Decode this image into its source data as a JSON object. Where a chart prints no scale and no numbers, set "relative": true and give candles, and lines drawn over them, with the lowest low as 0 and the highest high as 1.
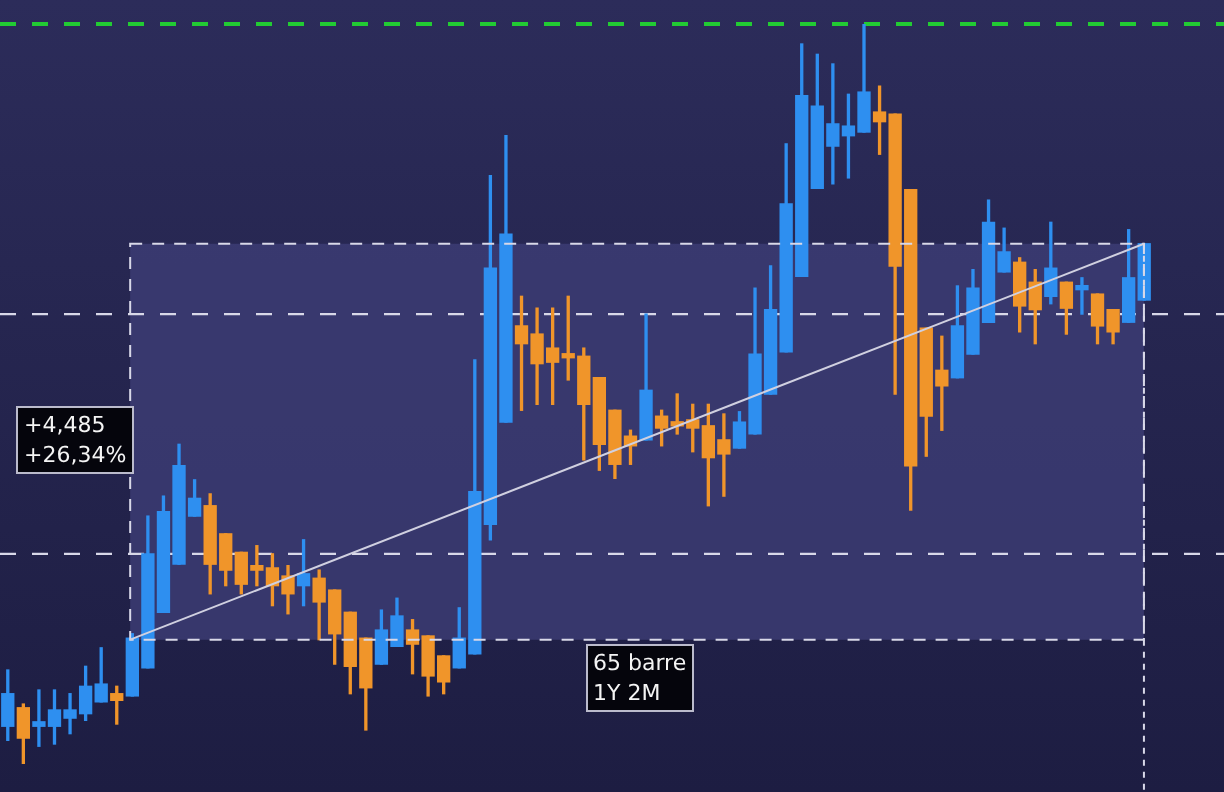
{
  "chart_data": {
    "type": "candlestick",
    "relative": true,
    "categories": [
      null,
      null,
      null,
      null,
      null,
      null,
      null,
      null,
      null,
      null,
      null,
      null,
      null,
      null,
      null,
      null,
      null,
      null,
      null,
      null,
      null,
      null,
      null,
      null,
      null,
      null,
      null,
      null,
      null,
      null,
      null,
      null,
      null,
      null,
      null,
      null,
      null,
      null,
      null,
      null,
      null,
      null,
      null,
      null,
      null,
      null,
      null,
      null,
      null,
      null,
      null,
      null,
      null,
      null,
      null,
      null,
      null,
      null,
      null,
      null,
      null,
      null,
      null,
      null,
      null,
      null,
      null,
      null,
      null,
      null,
      null,
      null,
      null,
      null
    ],
    "ohlc": [
      [
        0.051,
        0.127,
        0.032,
        0.095
      ],
      [
        0.076,
        0.081,
        0,
        0.035
      ],
      [
        0.051,
        0.1,
        0.024,
        0.057
      ],
      [
        0.051,
        0.1,
        0.027,
        0.073
      ],
      [
        0.062,
        0.095,
        0.041,
        0.073
      ],
      [
        0.068,
        0.132,
        0.059,
        0.105
      ],
      [
        0.084,
        0.157,
        0.084,
        0.108
      ],
      [
        0.095,
        0.105,
        0.054,
        0.086
      ],
      [
        0.092,
        0.176,
        0.092,
        0.17
      ],
      [
        0.13,
        0.335,
        0.13,
        0.284
      ],
      [
        0.205,
        0.362,
        0.205,
        0.341
      ],
      [
        0.27,
        0.432,
        0.27,
        0.403
      ],
      [
        0.335,
        0.384,
        0.335,
        0.359
      ],
      [
        0.349,
        0.365,
        0.23,
        0.27
      ],
      [
        0.311,
        0.311,
        0.241,
        0.262
      ],
      [
        0.286,
        0.286,
        0.23,
        0.243
      ],
      [
        0.268,
        0.295,
        0.241,
        0.262
      ],
      [
        0.265,
        0.284,
        0.214,
        0.241
      ],
      [
        0.254,
        0.268,
        0.203,
        0.23
      ],
      [
        0.241,
        0.303,
        0.214,
        0.257
      ],
      [
        0.251,
        0.262,
        0.168,
        0.219
      ],
      [
        0.235,
        0.235,
        0.135,
        0.176
      ],
      [
        0.205,
        0.205,
        0.095,
        0.132
      ],
      [
        0.17,
        0.17,
        0.046,
        0.103
      ],
      [
        0.135,
        0.208,
        0.135,
        0.181
      ],
      [
        0.159,
        0.224,
        0.159,
        0.2
      ],
      [
        0.181,
        0.195,
        0.122,
        0.162
      ],
      [
        0.173,
        0.173,
        0.092,
        0.119
      ],
      [
        0.146,
        0.146,
        0.095,
        0.111
      ],
      [
        0.13,
        0.211,
        0.13,
        0.17
      ],
      [
        0.149,
        0.546,
        0.149,
        0.368
      ],
      [
        0.324,
        0.795,
        0.303,
        0.67
      ],
      [
        0.462,
        0.849,
        0.462,
        0.716
      ],
      [
        0.592,
        0.632,
        0.478,
        0.568
      ],
      [
        0.581,
        0.616,
        0.486,
        0.541
      ],
      [
        0.562,
        0.616,
        0.486,
        0.543
      ],
      [
        0.554,
        0.632,
        0.519,
        0.549
      ],
      [
        0.551,
        0.562,
        0.411,
        0.486
      ],
      [
        0.522,
        0.522,
        0.397,
        0.432
      ],
      [
        0.478,
        0.478,
        0.386,
        0.405
      ],
      [
        0.443,
        0.451,
        0.405,
        0.43
      ],
      [
        0.438,
        0.608,
        0.438,
        0.505
      ],
      [
        0.47,
        0.478,
        0.43,
        0.454
      ],
      [
        0.462,
        0.5,
        0.446,
        0.457
      ],
      [
        0.465,
        0.486,
        0.422,
        0.454
      ],
      [
        0.457,
        0.486,
        0.349,
        0.414
      ],
      [
        0.438,
        0.473,
        0.362,
        0.419
      ],
      [
        0.427,
        0.476,
        0.427,
        0.462
      ],
      [
        0.446,
        0.643,
        0.446,
        0.554
      ],
      [
        0.5,
        0.673,
        0.5,
        0.614
      ],
      [
        0.557,
        0.838,
        0.557,
        0.757
      ],
      [
        0.659,
        0.973,
        0.659,
        0.903
      ],
      [
        0.778,
        0.959,
        0.778,
        0.889
      ],
      [
        0.835,
        0.946,
        0.784,
        0.865
      ],
      [
        0.849,
        0.905,
        0.792,
        0.862
      ],
      [
        0.854,
        1,
        0.854,
        0.908
      ],
      [
        0.881,
        0.916,
        0.824,
        0.868
      ],
      [
        0.878,
        0.878,
        0.5,
        0.673
      ],
      [
        0.776,
        0.776,
        0.343,
        0.403
      ],
      [
        0.589,
        0.589,
        0.416,
        0.47
      ],
      [
        0.532,
        0.578,
        0.451,
        0.511
      ],
      [
        0.522,
        0.646,
        0.522,
        0.592
      ],
      [
        0.554,
        0.668,
        0.554,
        0.643
      ],
      [
        0.597,
        0.762,
        0.597,
        0.732
      ],
      [
        0.665,
        0.724,
        0.665,
        0.692
      ],
      [
        0.678,
        0.684,
        0.584,
        0.619
      ],
      [
        0.651,
        0.668,
        0.568,
        0.614
      ],
      [
        0.632,
        0.732,
        0.622,
        0.67
      ],
      [
        0.651,
        0.651,
        0.581,
        0.616
      ],
      [
        0.641,
        0.657,
        0.608,
        0.646
      ],
      [
        0.635,
        0.635,
        0.568,
        0.592
      ],
      [
        0.614,
        0.614,
        0.568,
        0.584
      ],
      [
        0.597,
        0.722,
        0.597,
        0.657
      ],
      [
        0.627,
        0.703,
        0.627,
        0.703
      ]
    ],
    "colors": [
      "#2e8ff0",
      "#f0952a",
      "#2e8ff0",
      "#2e8ff0",
      "#2e8ff0",
      "#2e8ff0",
      "#2e8ff0",
      "#f0952a",
      "#2e8ff0",
      "#2e8ff0",
      "#2e8ff0",
      "#2e8ff0",
      "#2e8ff0",
      "#f0952a",
      "#f0952a",
      "#f0952a",
      "#f0952a",
      "#f0952a",
      "#f0952a",
      "#2e8ff0",
      "#f0952a",
      "#f0952a",
      "#f0952a",
      "#f0952a",
      "#2e8ff0",
      "#2e8ff0",
      "#f0952a",
      "#f0952a",
      "#f0952a",
      "#2e8ff0",
      "#2e8ff0",
      "#2e8ff0",
      "#2e8ff0",
      "#f0952a",
      "#f0952a",
      "#f0952a",
      "#f0952a",
      "#f0952a",
      "#f0952a",
      "#f0952a",
      "#f0952a",
      "#2e8ff0",
      "#f0952a",
      "#f0952a",
      "#f0952a",
      "#f0952a",
      "#f0952a",
      "#2e8ff0",
      "#2e8ff0",
      "#2e8ff0",
      "#2e8ff0",
      "#2e8ff0",
      "#2e8ff0",
      "#2e8ff0",
      "#2e8ff0",
      "#2e8ff0",
      "#f0952a",
      "#f0952a",
      "#f0952a",
      "#f0952a",
      "#f0952a",
      "#2e8ff0",
      "#2e8ff0",
      "#2e8ff0",
      "#2e8ff0",
      "#f0952a",
      "#f0952a",
      "#2e8ff0",
      "#f0952a",
      "#2e8ff0",
      "#f0952a",
      "#f0952a",
      "#2e8ff0",
      "#2e8ff0"
    ],
    "ref_lines": [
      {
        "axis": "y",
        "value": 1,
        "color": "#22cc33",
        "line_style": "dashed"
      },
      {
        "axis": "y",
        "value": 0.608,
        "color": "#d8d8e8",
        "line_style": "dashed"
      },
      {
        "axis": "y",
        "value": 0.284,
        "color": "#d8d8e8",
        "line_style": "dashed"
      }
    ],
    "bands": [
      {
        "axis": "y",
        "from": 0.168,
        "to": 0.703,
        "color": "#3f3f78"
      }
    ],
    "annotations": [
      "+4,485\n+26,34%",
      "65 barre\n1Y 2M"
    ],
    "legend": false
  }
}
